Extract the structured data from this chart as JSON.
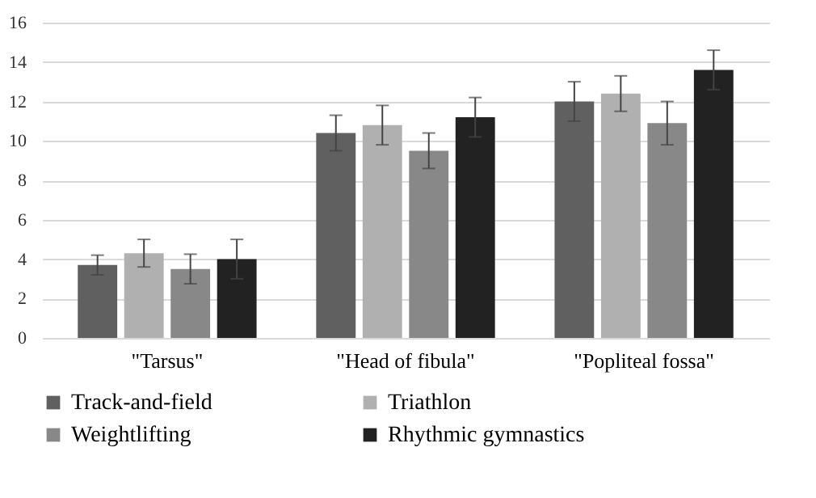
{
  "chart_data": {
    "type": "bar",
    "categories": [
      "\"Tarsus\"",
      "\"Head of fibula\"",
      "\"Popliteal fossa\""
    ],
    "series": [
      {
        "name": "Track-and-field",
        "color": "#606060",
        "values": [
          3.7,
          10.4,
          12.0
        ],
        "errors": [
          0.5,
          0.9,
          1.0
        ]
      },
      {
        "name": "Triathlon",
        "color": "#b0b0b0",
        "values": [
          4.3,
          10.8,
          12.4
        ],
        "errors": [
          0.7,
          1.0,
          0.9
        ]
      },
      {
        "name": "Weightlifting",
        "color": "#888888",
        "values": [
          3.5,
          9.5,
          10.9
        ],
        "errors": [
          0.75,
          0.9,
          1.1
        ]
      },
      {
        "name": "Rhythmic gymnastics",
        "color": "#222222",
        "values": [
          4.0,
          11.2,
          13.6
        ],
        "errors": [
          1.0,
          1.0,
          1.0
        ]
      }
    ],
    "ylim": [
      0,
      16
    ],
    "yticks": [
      0,
      2,
      4,
      6,
      8,
      10,
      12,
      14,
      16
    ],
    "grid": "y",
    "legend": "bottom"
  }
}
